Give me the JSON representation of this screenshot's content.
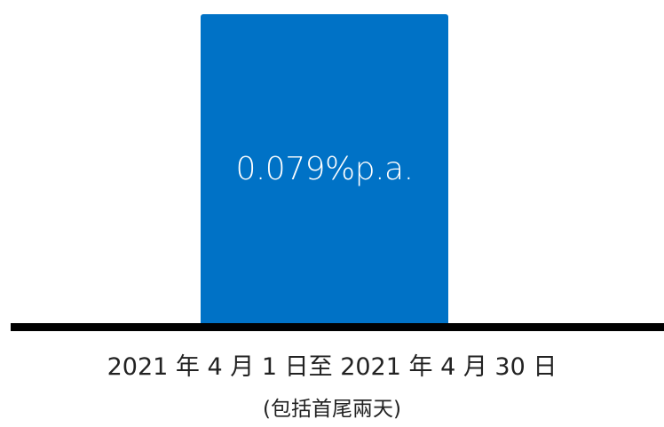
{
  "chart_data": {
    "type": "bar",
    "categories": [
      "2021 年 4 月 1 日至 2021 年 4 月 30 日"
    ],
    "values": [
      0.079
    ],
    "data_labels": [
      "0.079%p.a."
    ],
    "unit": "%p.a.",
    "subtitle_note": "(包括首尾兩天)",
    "colors": {
      "bar": "#0072C6",
      "baseline": "#000000",
      "text": "#222222"
    },
    "ylim": [
      0,
      0.0805
    ],
    "grid": false,
    "legend": "none"
  }
}
